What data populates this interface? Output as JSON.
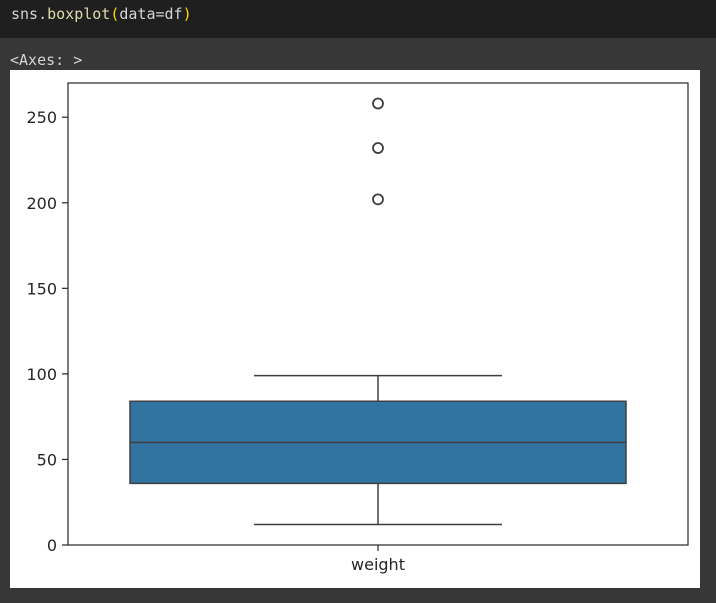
{
  "code_cell": {
    "obj": "sns",
    "dot": ".",
    "fn": "boxplot",
    "open_paren": "(",
    "args": "data=df",
    "close_paren": ")"
  },
  "output": {
    "repr": "<Axes: >"
  },
  "colors": {
    "box_fill": "#3274a1",
    "line": "#3f3f3f",
    "cell_bg": "#1f1f1f",
    "output_bg": "#373737"
  },
  "chart_data": {
    "type": "boxplot",
    "title": "",
    "xlabel": "",
    "ylabel": "",
    "ylim": [
      0,
      270
    ],
    "yticks": [
      0,
      50,
      100,
      150,
      200,
      250
    ],
    "categories": [
      "weight"
    ],
    "boxes": [
      {
        "category": "weight",
        "whisker_low": 12,
        "q1": 36,
        "median": 60,
        "q3": 84,
        "whisker_high": 99,
        "outliers": [
          202,
          232,
          258
        ]
      }
    ],
    "grid": false,
    "legend": "none"
  }
}
